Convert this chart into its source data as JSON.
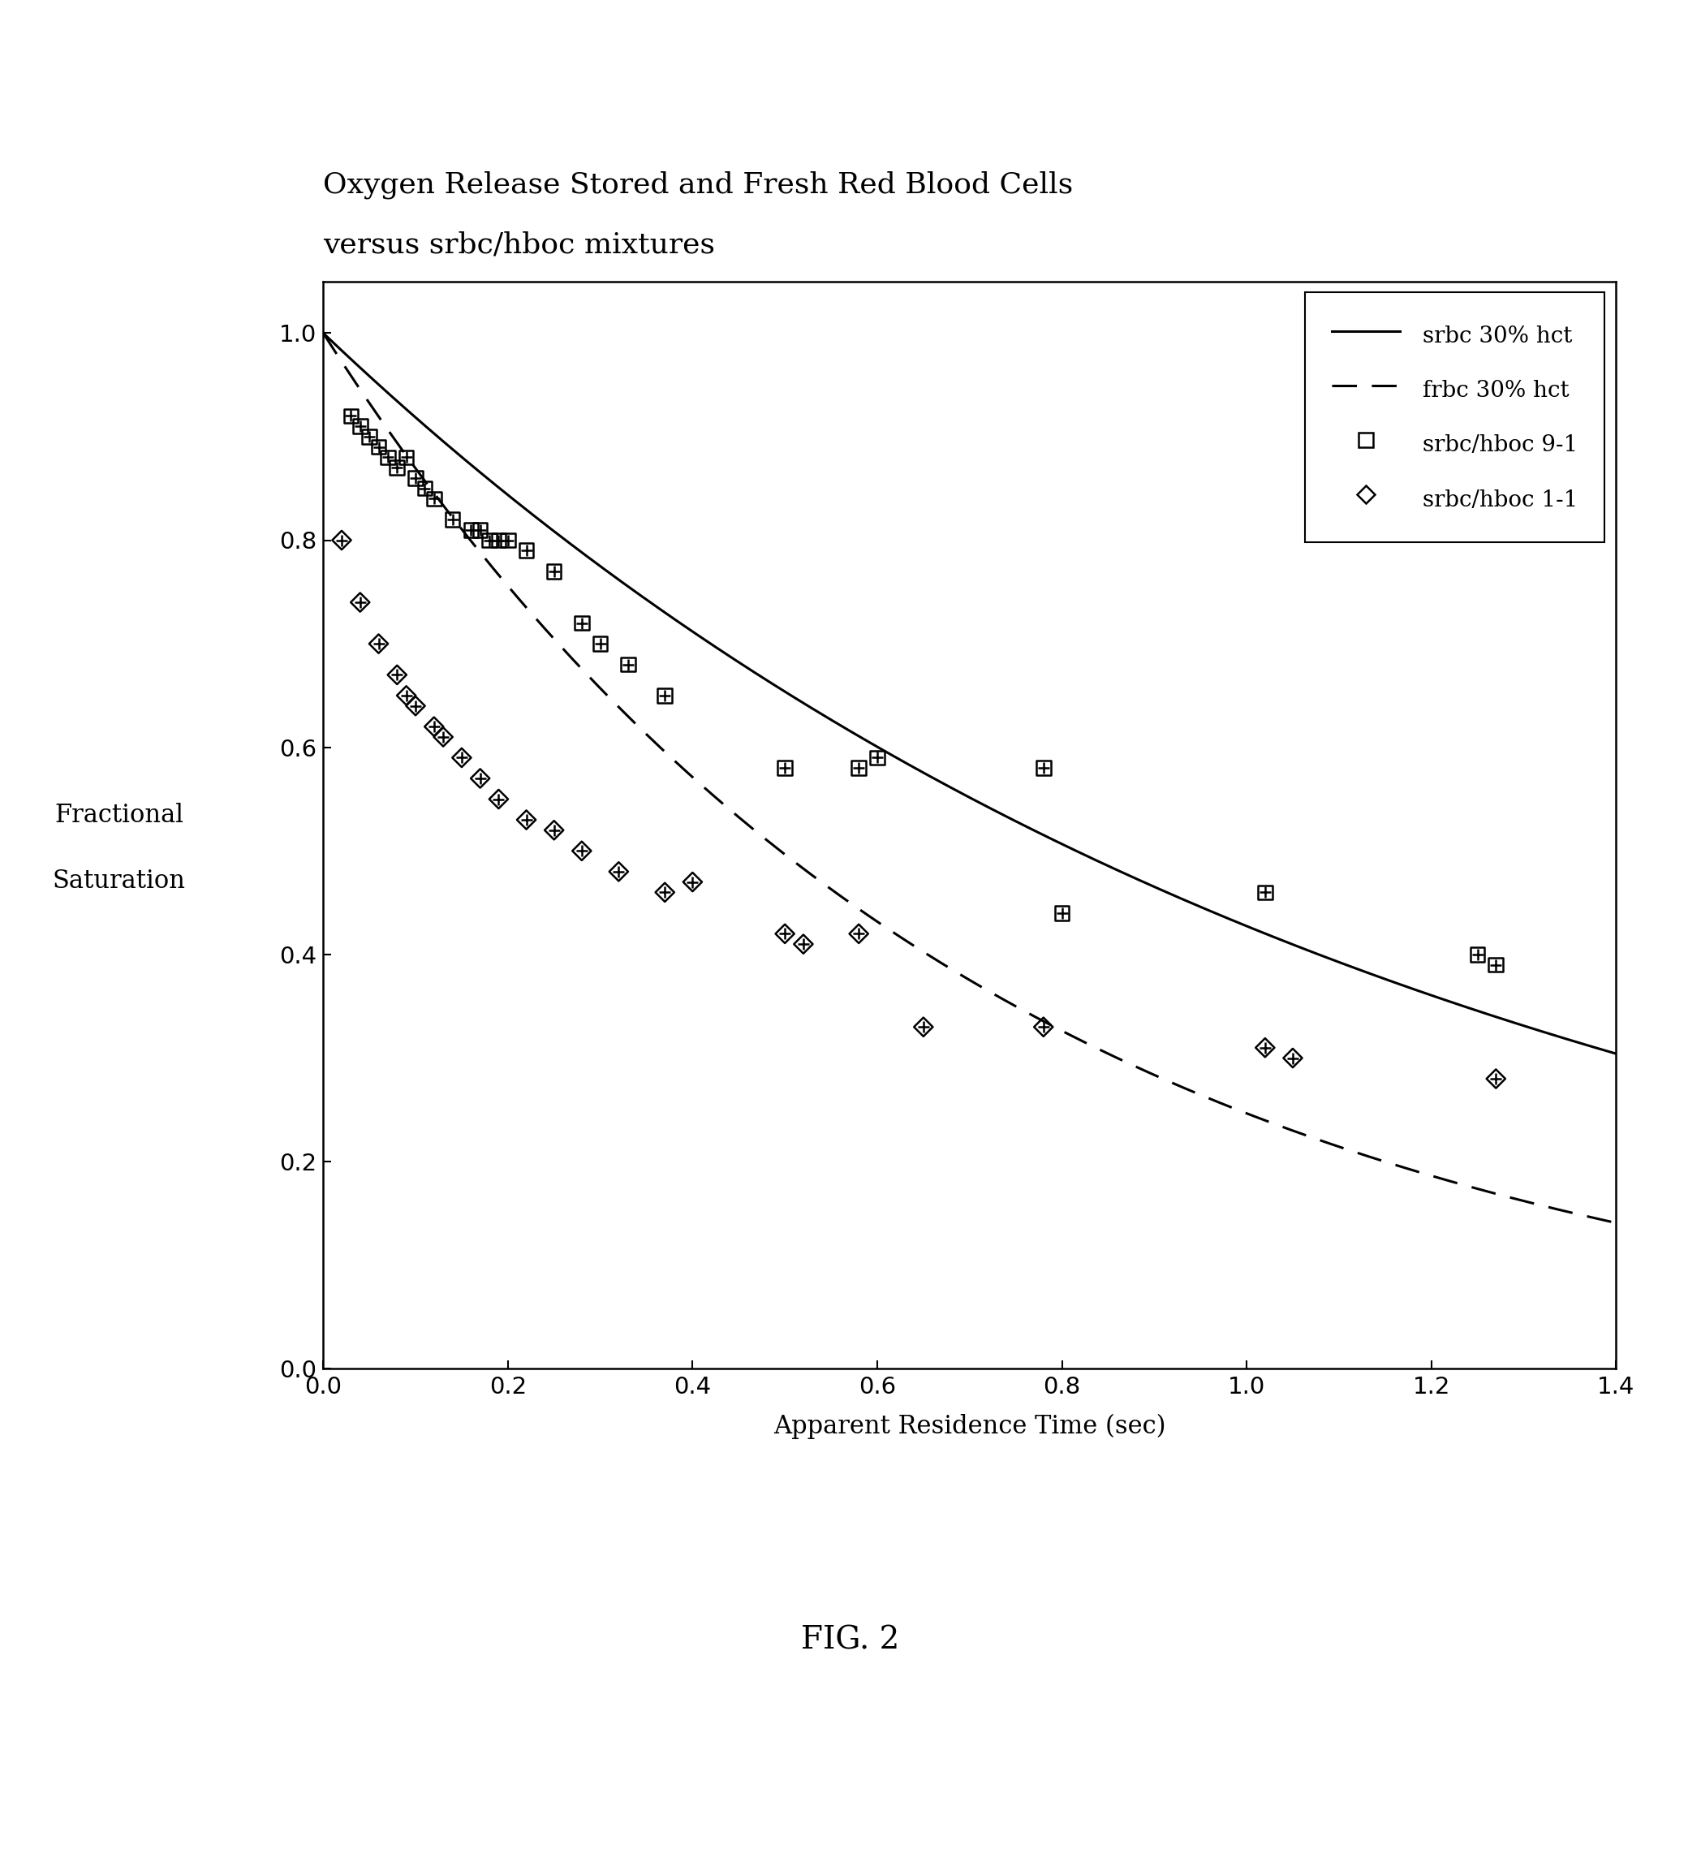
{
  "title_line1": "Oxygen Release Stored and Fresh Red Blood Cells",
  "title_line2": "versus srbc/hboc mixtures",
  "xlabel": "Apparent Residence Time (sec)",
  "ylabel_line1": "Fractional",
  "ylabel_line2": "Saturation",
  "fig_label": "FIG. 2",
  "xlim": [
    0.0,
    1.4
  ],
  "ylim": [
    0.0,
    1.05
  ],
  "xticks": [
    0.0,
    0.2,
    0.4,
    0.6,
    0.8,
    1.0,
    1.2,
    1.4
  ],
  "yticks": [
    0.0,
    0.2,
    0.4,
    0.6,
    0.8,
    1.0
  ],
  "srbc_b": 0.85,
  "frbc_b": 1.4,
  "srbc_hboc_91_x": [
    0.03,
    0.04,
    0.05,
    0.06,
    0.07,
    0.08,
    0.09,
    0.1,
    0.11,
    0.12,
    0.14,
    0.16,
    0.17,
    0.18,
    0.19,
    0.2,
    0.22,
    0.25,
    0.28,
    0.3,
    0.33,
    0.37,
    0.5,
    0.58,
    0.6,
    0.78,
    0.8,
    1.02,
    1.25,
    1.27
  ],
  "srbc_hboc_91_y": [
    0.92,
    0.91,
    0.9,
    0.89,
    0.88,
    0.87,
    0.88,
    0.86,
    0.85,
    0.84,
    0.82,
    0.81,
    0.81,
    0.8,
    0.8,
    0.8,
    0.79,
    0.77,
    0.72,
    0.7,
    0.68,
    0.65,
    0.58,
    0.58,
    0.59,
    0.58,
    0.44,
    0.46,
    0.4,
    0.39
  ],
  "srbc_hboc_11_x": [
    0.02,
    0.04,
    0.06,
    0.08,
    0.09,
    0.1,
    0.12,
    0.13,
    0.15,
    0.17,
    0.19,
    0.22,
    0.25,
    0.28,
    0.32,
    0.37,
    0.4,
    0.5,
    0.52,
    0.58,
    0.65,
    0.78,
    1.02,
    1.05,
    1.27
  ],
  "srbc_hboc_11_y": [
    0.8,
    0.74,
    0.7,
    0.67,
    0.65,
    0.64,
    0.62,
    0.61,
    0.59,
    0.57,
    0.55,
    0.53,
    0.52,
    0.5,
    0.48,
    0.46,
    0.47,
    0.42,
    0.41,
    0.42,
    0.33,
    0.33,
    0.31,
    0.3,
    0.28
  ],
  "background_color": "#ffffff",
  "line_color": "#000000",
  "title_fontsize": 26,
  "axis_label_fontsize": 22,
  "tick_fontsize": 21,
  "legend_fontsize": 20,
  "fig_label_fontsize": 28
}
